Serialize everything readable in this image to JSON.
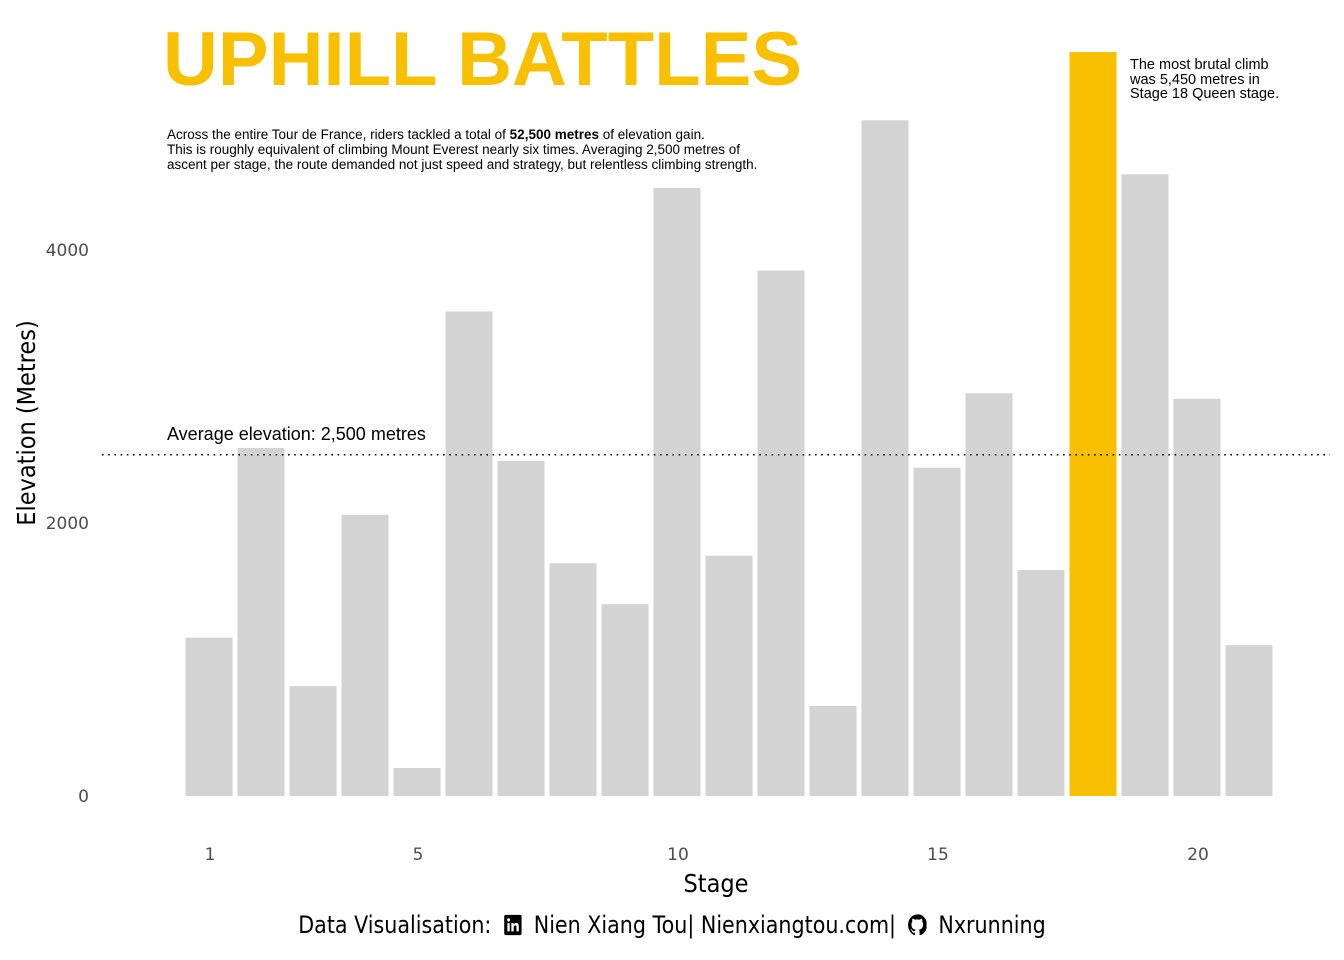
{
  "title": "UPHILL BATTLES",
  "subtitle": {
    "line1_pre": "Across the entire Tour de France, riders tackled a total of ",
    "line1_bold": "52,500 metres",
    "line1_post": " of elevation gain.",
    "line2": "This is roughly equivalent of climbing Mount Everest nearly six times. Averaging 2,500 metres of",
    "line3": "ascent per stage, the route demanded not just speed and strategy, but relentless climbing strength."
  },
  "annotation": [
    "The most brutal climb",
    "was 5,450 metres in",
    "Stage 18 Queen stage."
  ],
  "average_label": "Average elevation: 2,500 metres",
  "footer": {
    "prefix": "Data Visualisation:",
    "linkedin_icon": "linkedin-icon",
    "name": "Nien Xiang Tou",
    "sep1": "|",
    "website": "Nienxiangtou.com",
    "sep2": "|",
    "github_icon": "github-icon",
    "github": "Nxrunning"
  },
  "colors": {
    "bar": "#D3D3D3",
    "highlight": "#F8C000",
    "title": "#F8C000"
  },
  "chart_data": {
    "type": "bar",
    "xlabel": "Stage",
    "ylabel": "Elevation (Metres)",
    "categories": [
      1,
      2,
      3,
      4,
      5,
      6,
      7,
      8,
      9,
      10,
      11,
      12,
      13,
      14,
      15,
      16,
      17,
      18,
      19,
      20,
      21
    ],
    "values": [
      1160,
      2550,
      805,
      2060,
      205,
      3550,
      2455,
      1705,
      1405,
      4455,
      1760,
      3850,
      660,
      4950,
      2405,
      2950,
      1655,
      5450,
      4555,
      2910,
      1105
    ],
    "highlight_category": 18,
    "average": 2500,
    "xticks": [
      1,
      5,
      10,
      15,
      20
    ],
    "xtick_labels": [
      "1",
      "5",
      "10",
      "15",
      "20"
    ],
    "yticks": [
      0,
      2000,
      4000
    ],
    "ytick_labels": [
      "0",
      "2000",
      "4000"
    ],
    "ylim": [
      0,
      5450
    ],
    "grid": false
  }
}
